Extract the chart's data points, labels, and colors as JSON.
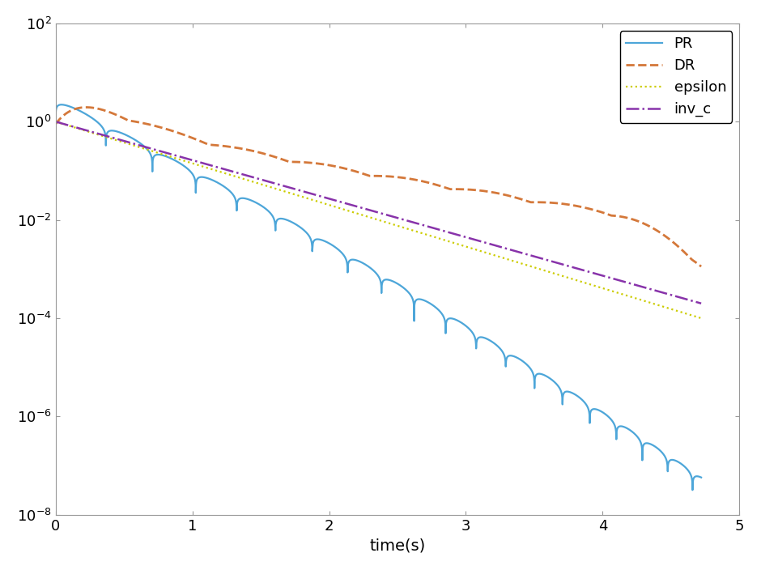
{
  "title": "",
  "xlabel": "time(s)",
  "ylabel": "",
  "xlim": [
    0,
    5
  ],
  "ylim_log": [
    -8,
    2
  ],
  "legend": [
    "PR",
    "DR",
    "epsilon",
    "inv_c"
  ],
  "colors": {
    "PR": "#4DA6D9",
    "DR": "#D4783A",
    "epsilon": "#CCCC00",
    "inv_c": "#8833AA"
  },
  "linestyles": {
    "PR": "-",
    "DR": "--",
    "epsilon": ":",
    "inv_c": "-."
  },
  "linewidths": {
    "PR": 1.6,
    "DR": 2.0,
    "epsilon": 1.6,
    "inv_c": 1.8
  },
  "background_color": "#FFFFFF",
  "figsize": [
    9.4,
    7.04
  ],
  "dpi": 100,
  "PR_start": 3.0,
  "PR_decay": 3.8,
  "PR_freq": 2.8,
  "PR_end_t": 4.72,
  "DR_peak": 5.0,
  "DR_peak_t": 0.4,
  "DR_decay": 1.5,
  "DR_freq": 0.9,
  "epsilon_start": 1.0,
  "epsilon_end": 0.0001,
  "inv_c_start": 1.0,
  "inv_c_end": 0.0002,
  "t_end": 4.72
}
